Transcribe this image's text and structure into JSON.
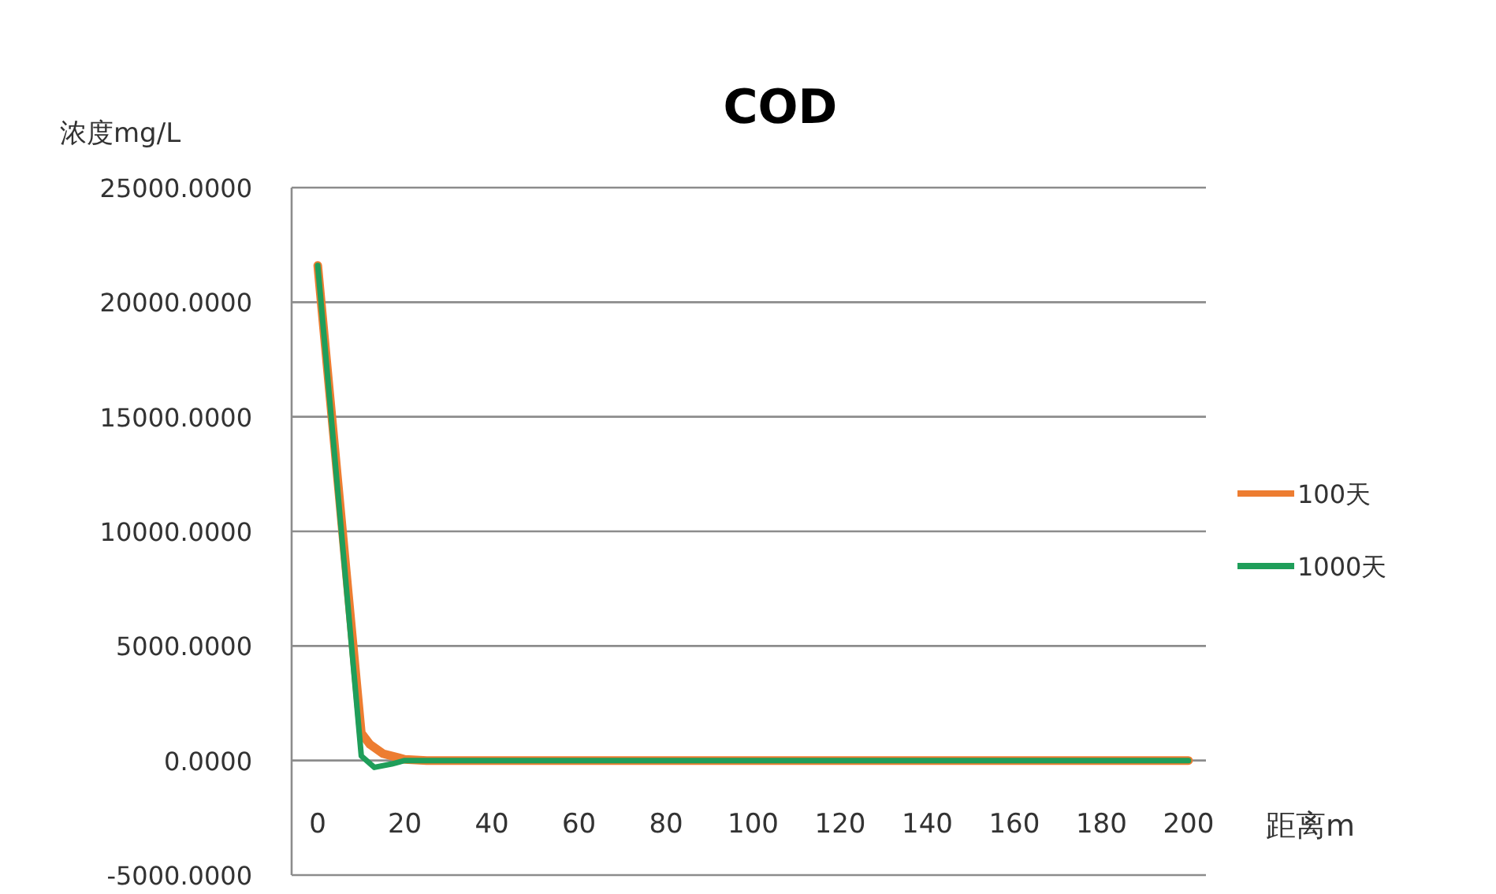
{
  "chart_data": {
    "type": "line",
    "title": "COD",
    "xlabel": "距离m",
    "ylabel": "浓度mg/L",
    "xlim": [
      -6,
      204
    ],
    "xticks": [
      0,
      20,
      40,
      60,
      80,
      100,
      120,
      140,
      160,
      180,
      200
    ],
    "ylim": [
      -5000,
      25000
    ],
    "yticks": [
      {
        "value": -5000,
        "label": "-5000.0000"
      },
      {
        "value": 0,
        "label": "0.0000"
      },
      {
        "value": 5000,
        "label": "5000.0000"
      },
      {
        "value": 10000,
        "label": "10000.0000"
      },
      {
        "value": 15000,
        "label": "15000.0000"
      },
      {
        "value": 20000,
        "label": "20000.0000"
      },
      {
        "value": 25000,
        "label": "25000.0000"
      }
    ],
    "grid": "y",
    "legend": "right",
    "marker": "none",
    "line_style": "solid",
    "series": [
      {
        "name": "100天",
        "color": "#ed7d31",
        "x": [
          0,
          10,
          12,
          15,
          20,
          25,
          200
        ],
        "values": [
          21600,
          1200,
          700,
          300,
          50,
          0,
          0
        ]
      },
      {
        "name": "1000天",
        "color": "#1f9e5a",
        "x": [
          0,
          10,
          13,
          17,
          20,
          200
        ],
        "values": [
          21600,
          200,
          -300,
          -150,
          0,
          0
        ]
      }
    ]
  }
}
